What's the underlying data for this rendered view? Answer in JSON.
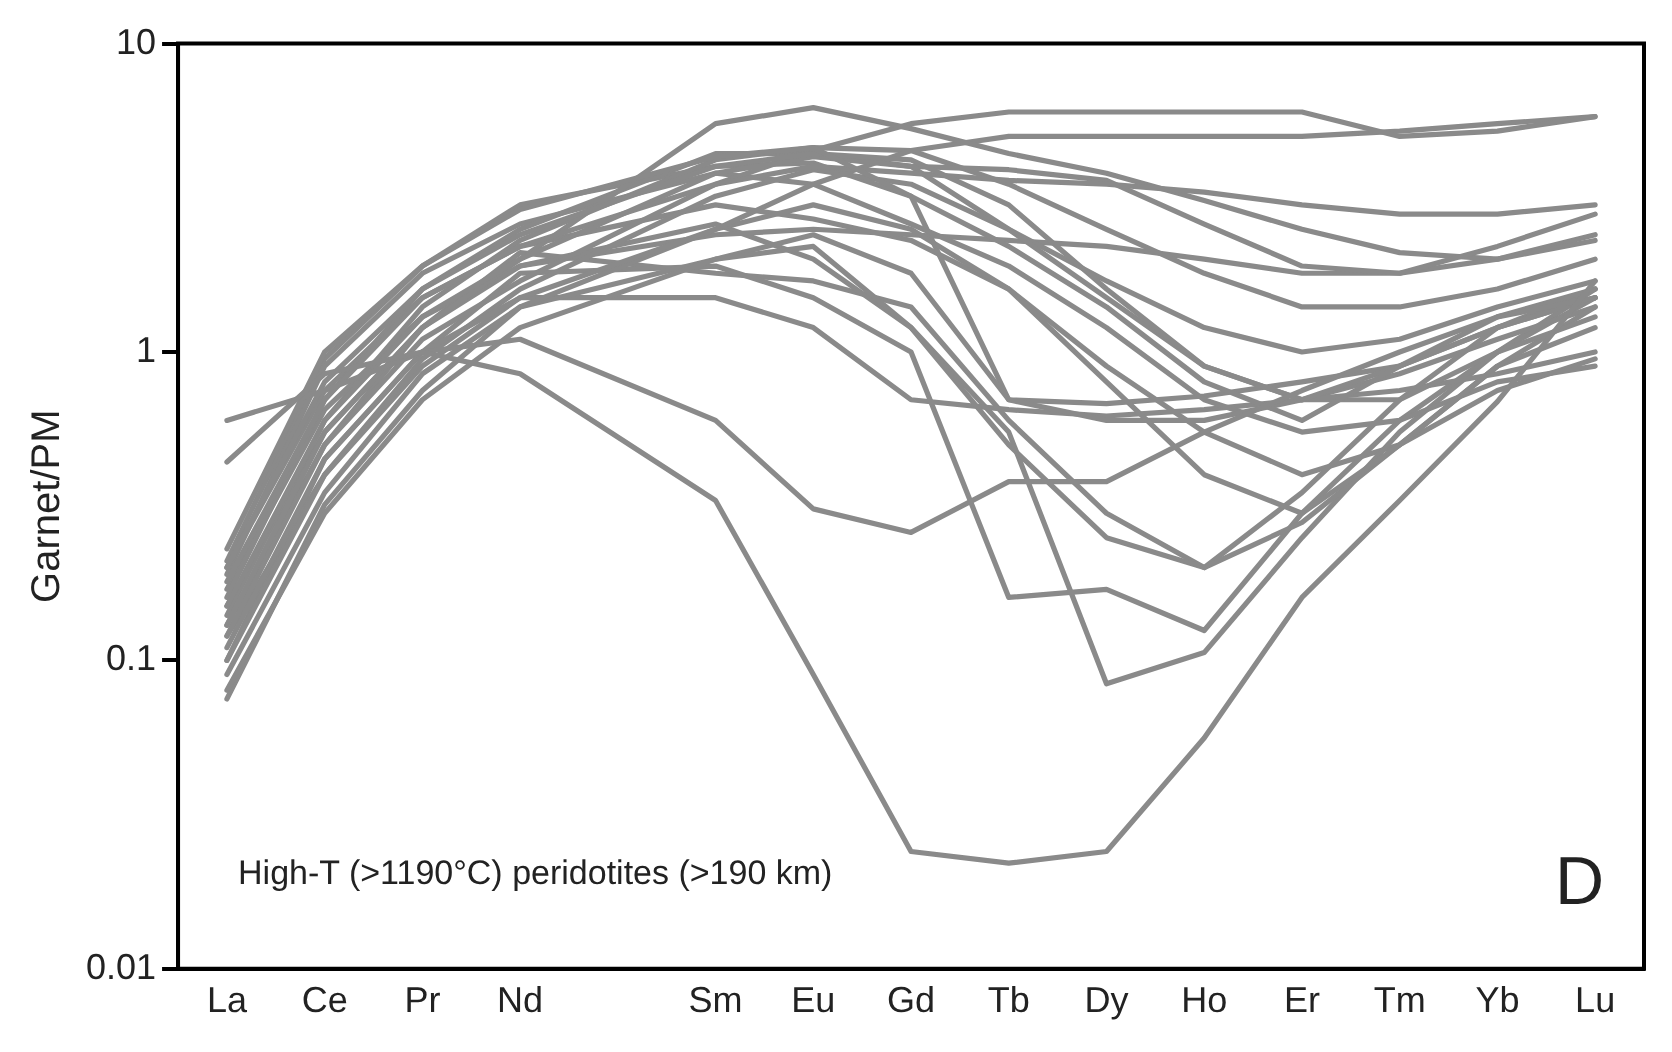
{
  "chart_data": {
    "type": "line",
    "ylabel": "Garnet/PM",
    "log": true,
    "grid": false,
    "legend": false,
    "marker": "none",
    "line_style": "solid",
    "color": "#8a8a8a",
    "categories": [
      "La",
      "Ce",
      "Pr",
      "Nd",
      null,
      "Sm",
      "Eu",
      "Gd",
      "Tb",
      "Dy",
      "Ho",
      "Er",
      "Tm",
      "Yb",
      "Lu"
    ],
    "ylim": [
      0.01,
      10
    ],
    "yticks": [
      0.01,
      0.1,
      1,
      10
    ],
    "annotations": [
      "High-T (>1190°C) peridotites (>190 km)",
      "D"
    ],
    "series": [
      {
        "values": [
          0.44,
          0.85,
          1.0,
          0.85,
          null,
          0.33,
          0.09,
          0.024,
          0.022,
          0.024,
          0.056,
          0.16,
          0.33,
          0.69,
          1.7
        ]
      },
      {
        "values": [
          0.6,
          0.75,
          1.0,
          1.1,
          null,
          0.6,
          0.31,
          0.26,
          0.38,
          0.38,
          0.55,
          0.75,
          1.0,
          1.3,
          1.5
        ]
      },
      {
        "values": [
          0.23,
          1.0,
          1.9,
          2.9,
          null,
          4.3,
          4.6,
          3.2,
          2.2,
          1.4,
          0.8,
          0.6,
          0.9,
          1.3,
          1.6
        ]
      },
      {
        "values": [
          0.2,
          0.8,
          1.6,
          2.4,
          null,
          4.0,
          4.4,
          4.2,
          3.0,
          1.6,
          0.9,
          0.7,
          0.9,
          1.2,
          1.5
        ]
      },
      {
        "values": [
          0.18,
          0.7,
          1.5,
          2.2,
          null,
          3.5,
          4.0,
          3.8,
          3.6,
          3.5,
          3.3,
          3.0,
          2.8,
          2.8,
          3.0
        ]
      },
      {
        "values": [
          0.15,
          0.6,
          1.3,
          2.0,
          null,
          3.8,
          4.3,
          4.0,
          3.9,
          3.6,
          2.6,
          1.9,
          1.8,
          2.2,
          2.8
        ]
      },
      {
        "values": [
          0.13,
          0.55,
          1.2,
          2.0,
          null,
          5.5,
          6.2,
          5.3,
          4.4,
          3.8,
          3.1,
          2.5,
          2.1,
          2.0,
          2.3
        ]
      },
      {
        "values": [
          0.12,
          0.5,
          1.1,
          1.7,
          null,
          3.5,
          4.5,
          5.5,
          6.0,
          6.0,
          6.0,
          6.0,
          5.0,
          5.2,
          5.8
        ]
      },
      {
        "values": [
          0.11,
          0.45,
          1.0,
          1.5,
          null,
          2.5,
          3.5,
          4.5,
          5.0,
          5.0,
          5.0,
          5.0,
          5.2,
          5.5,
          5.8
        ]
      },
      {
        "values": [
          0.1,
          0.4,
          0.95,
          1.6,
          null,
          3.2,
          3.9,
          3.5,
          2.5,
          1.5,
          0.9,
          0.7,
          0.7,
          1.0,
          1.3
        ]
      },
      {
        "values": [
          0.09,
          0.35,
          0.85,
          1.4,
          null,
          2.5,
          3.0,
          2.5,
          1.6,
          0.8,
          0.4,
          0.3,
          0.5,
          0.9,
          1.4
        ]
      },
      {
        "values": [
          0.08,
          0.3,
          0.7,
          1.2,
          null,
          2.0,
          2.2,
          1.2,
          0.5,
          0.25,
          0.2,
          0.28,
          0.5,
          0.9,
          1.2
        ]
      },
      {
        "values": [
          0.075,
          0.32,
          0.75,
          1.4,
          null,
          2.0,
          2.4,
          1.8,
          0.7,
          0.6,
          0.6,
          0.7,
          0.75,
          0.85,
          1.0
        ]
      },
      {
        "values": [
          0.14,
          0.6,
          1.4,
          2.3,
          null,
          4.2,
          4.6,
          4.5,
          3.5,
          2.5,
          1.8,
          1.4,
          1.4,
          1.6,
          2.0
        ]
      },
      {
        "values": [
          0.16,
          0.7,
          1.6,
          2.5,
          null,
          4.4,
          4.4,
          4.0,
          2.5,
          1.7,
          1.2,
          1.0,
          1.1,
          1.4,
          1.7
        ]
      },
      {
        "values": [
          0.19,
          0.9,
          1.8,
          2.6,
          null,
          3.8,
          3.5,
          2.6,
          1.9,
          1.2,
          0.7,
          0.55,
          0.6,
          0.8,
          0.9
        ]
      },
      {
        "values": [
          0.21,
          0.95,
          1.9,
          3.0,
          null,
          4.0,
          4.1,
          3.2,
          0.7,
          0.68,
          0.72,
          0.8,
          0.9,
          1.2,
          1.5
        ]
      },
      {
        "values": [
          0.17,
          0.65,
          1.3,
          1.9,
          null,
          2.4,
          2.5,
          2.4,
          2.3,
          2.2,
          2.0,
          1.8,
          1.8,
          2.0,
          2.4
        ]
      },
      {
        "values": [
          0.12,
          0.4,
          0.9,
          1.5,
          null,
          1.5,
          1.2,
          0.7,
          0.65,
          0.62,
          0.65,
          0.7,
          0.85,
          1.1,
          1.4
        ]
      },
      {
        "values": [
          0.1,
          0.45,
          1.0,
          1.8,
          null,
          1.9,
          1.5,
          1.0,
          0.16,
          0.17,
          0.125,
          0.3,
          0.6,
          1.0,
          1.5
        ]
      },
      {
        "values": [
          0.13,
          0.5,
          1.2,
          1.9,
          null,
          2.6,
          2.0,
          1.2,
          0.55,
          0.084,
          0.106,
          0.25,
          0.55,
          1.0,
          1.6
        ]
      },
      {
        "values": [
          0.15,
          0.55,
          1.2,
          2.1,
          null,
          1.8,
          1.7,
          1.4,
          0.6,
          0.3,
          0.2,
          0.35,
          0.7,
          1.2,
          1.6
        ]
      },
      {
        "values": [
          0.2,
          0.75,
          1.5,
          2.2,
          null,
          3.0,
          2.7,
          2.3,
          1.6,
          0.9,
          0.55,
          0.4,
          0.5,
          0.75,
          0.95
        ]
      }
    ]
  }
}
